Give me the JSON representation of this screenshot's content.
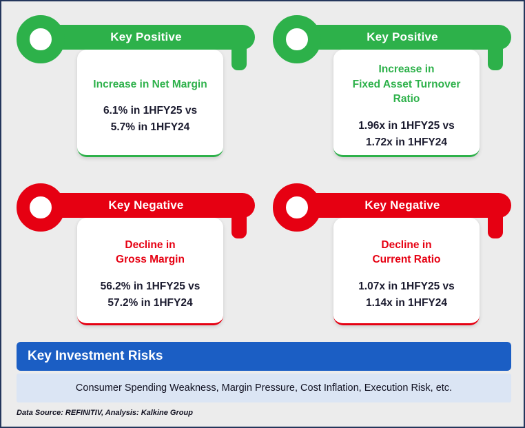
{
  "colors": {
    "positive": "#2db14a",
    "negative": "#e60012",
    "banner": "#1b5ec4",
    "strip": "#dbe5f4",
    "background": "#ececec",
    "border": "#24365c",
    "text_dark": "#1a1a2e"
  },
  "cards": [
    {
      "header": "Key Positive",
      "title": "Increase in Net Margin",
      "values": "6.1% in 1HFY25 vs\n5.7% in 1HFY24"
    },
    {
      "header": "Key Positive",
      "title": "Increase in\nFixed Asset Turnover Ratio",
      "values": "1.96x in 1HFY25 vs\n1.72x in 1HFY24"
    },
    {
      "header": "Key Negative",
      "title": "Decline in\nGross Margin",
      "values": "56.2% in 1HFY25 vs\n57.2% in 1HFY24"
    },
    {
      "header": "Key Negative",
      "title": "Decline in\nCurrent Ratio",
      "values": "1.07x in 1HFY25 vs\n1.14x in 1HFY24"
    }
  ],
  "risks": {
    "header": "Key Investment Risks",
    "body": "Consumer Spending Weakness, Margin Pressure, Cost Inflation, Execution Risk, etc."
  },
  "footer": {
    "note": "Data Source: REFINITIV, Analysis: Kalkine Group"
  }
}
